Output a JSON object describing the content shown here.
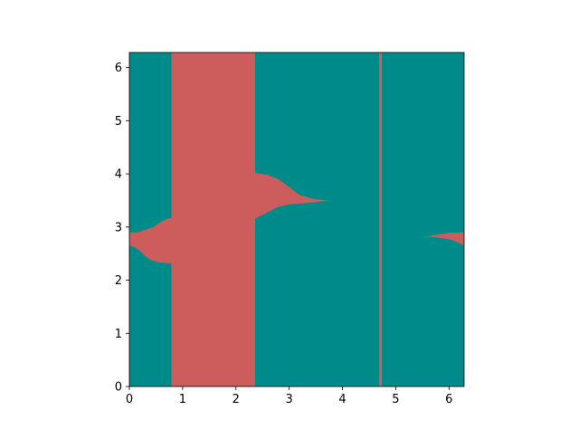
{
  "chart_data": {
    "type": "heatmap",
    "title": "",
    "xlabel": "",
    "ylabel": "",
    "xlim": [
      0,
      6.2832
    ],
    "ylim": [
      0,
      6.2832
    ],
    "xticks": [
      0,
      1,
      2,
      3,
      4,
      5,
      6
    ],
    "yticks": [
      0,
      1,
      2,
      3,
      4,
      5,
      6
    ],
    "xtick_labels": [
      "0",
      "1",
      "2",
      "3",
      "4",
      "5",
      "6"
    ],
    "ytick_labels": [
      "0",
      "1",
      "2",
      "3",
      "4",
      "5",
      "6"
    ],
    "grid": false,
    "legend": "none",
    "colors": {
      "background_class": "#008b8b",
      "region_class": "#cd5c5c",
      "axes": "#000000"
    },
    "regions": [
      {
        "class": "region_class",
        "description": "full-height vertical band",
        "polygon": [
          [
            0.79,
            0
          ],
          [
            2.36,
            0
          ],
          [
            2.36,
            6.2832
          ],
          [
            0.79,
            6.2832
          ]
        ]
      },
      {
        "class": "region_class",
        "description": "thin full-height vertical line",
        "polygon": [
          [
            4.69,
            0
          ],
          [
            4.74,
            0
          ],
          [
            4.74,
            6.2832
          ],
          [
            4.69,
            6.2832
          ]
        ]
      },
      {
        "class": "region_class",
        "description": "tongue on left edge",
        "polygon": [
          [
            0,
            2.9
          ],
          [
            0.15,
            2.9
          ],
          [
            0.3,
            2.95
          ],
          [
            0.45,
            3.0
          ],
          [
            0.6,
            3.1
          ],
          [
            0.7,
            3.15
          ],
          [
            0.8,
            3.18
          ],
          [
            0.8,
            2.32
          ],
          [
            0.7,
            2.32
          ],
          [
            0.55,
            2.34
          ],
          [
            0.4,
            2.38
          ],
          [
            0.3,
            2.45
          ],
          [
            0.2,
            2.55
          ],
          [
            0.1,
            2.62
          ],
          [
            0,
            2.65
          ]
        ]
      },
      {
        "class": "region_class",
        "description": "spike pointing right from band",
        "polygon": [
          [
            2.35,
            4.02
          ],
          [
            2.6,
            3.98
          ],
          [
            2.8,
            3.9
          ],
          [
            3.0,
            3.75
          ],
          [
            3.2,
            3.6
          ],
          [
            3.5,
            3.52
          ],
          [
            3.75,
            3.5
          ],
          [
            3.5,
            3.47
          ],
          [
            3.2,
            3.44
          ],
          [
            3.0,
            3.43
          ],
          [
            2.8,
            3.38
          ],
          [
            2.6,
            3.28
          ],
          [
            2.35,
            3.15
          ]
        ]
      },
      {
        "class": "region_class",
        "description": "small tongue on right edge",
        "polygon": [
          [
            5.6,
            2.82
          ],
          [
            5.8,
            2.86
          ],
          [
            6.0,
            2.89
          ],
          [
            6.29,
            2.9
          ],
          [
            6.29,
            2.65
          ],
          [
            6.15,
            2.72
          ],
          [
            6.0,
            2.77
          ],
          [
            5.8,
            2.8
          ]
        ]
      }
    ]
  }
}
